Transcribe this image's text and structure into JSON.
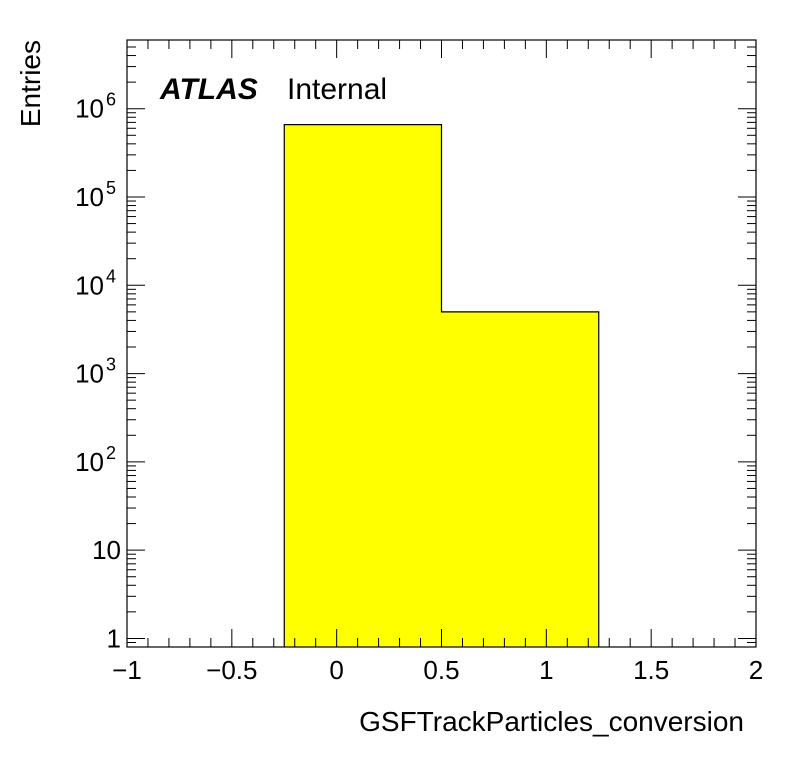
{
  "chart_data": {
    "type": "bar",
    "histogram": true,
    "bin_edges": [
      -0.25,
      0.5,
      1.25
    ],
    "values": [
      660000,
      5000
    ],
    "xlim": [
      -1,
      2
    ],
    "ylim": [
      0.8,
      6000000
    ],
    "ylog": true,
    "xlabel": "GSFTrackParticles_conversion",
    "ylabel": "Entries",
    "x_ticks": [
      -1,
      -0.5,
      0,
      0.5,
      1,
      1.5,
      2
    ],
    "x_tick_labels": [
      "−1",
      "−0.5",
      "0",
      "0.5",
      "1",
      "1.5",
      "2"
    ],
    "y_ticks": [
      {
        "value": 1,
        "base": "1",
        "exp": ""
      },
      {
        "value": 10,
        "base": "10",
        "exp": ""
      },
      {
        "value": 100,
        "base": "10",
        "exp": "2"
      },
      {
        "value": 1000,
        "base": "10",
        "exp": "3"
      },
      {
        "value": 10000,
        "base": "10",
        "exp": "4"
      },
      {
        "value": 100000,
        "base": "10",
        "exp": "5"
      },
      {
        "value": 1000000,
        "base": "10",
        "exp": "6"
      }
    ],
    "fill_color": "#ffff00",
    "line_color": "#000000",
    "grid": false,
    "annotation": {
      "experiment": "ATLAS",
      "status": "Internal"
    }
  }
}
